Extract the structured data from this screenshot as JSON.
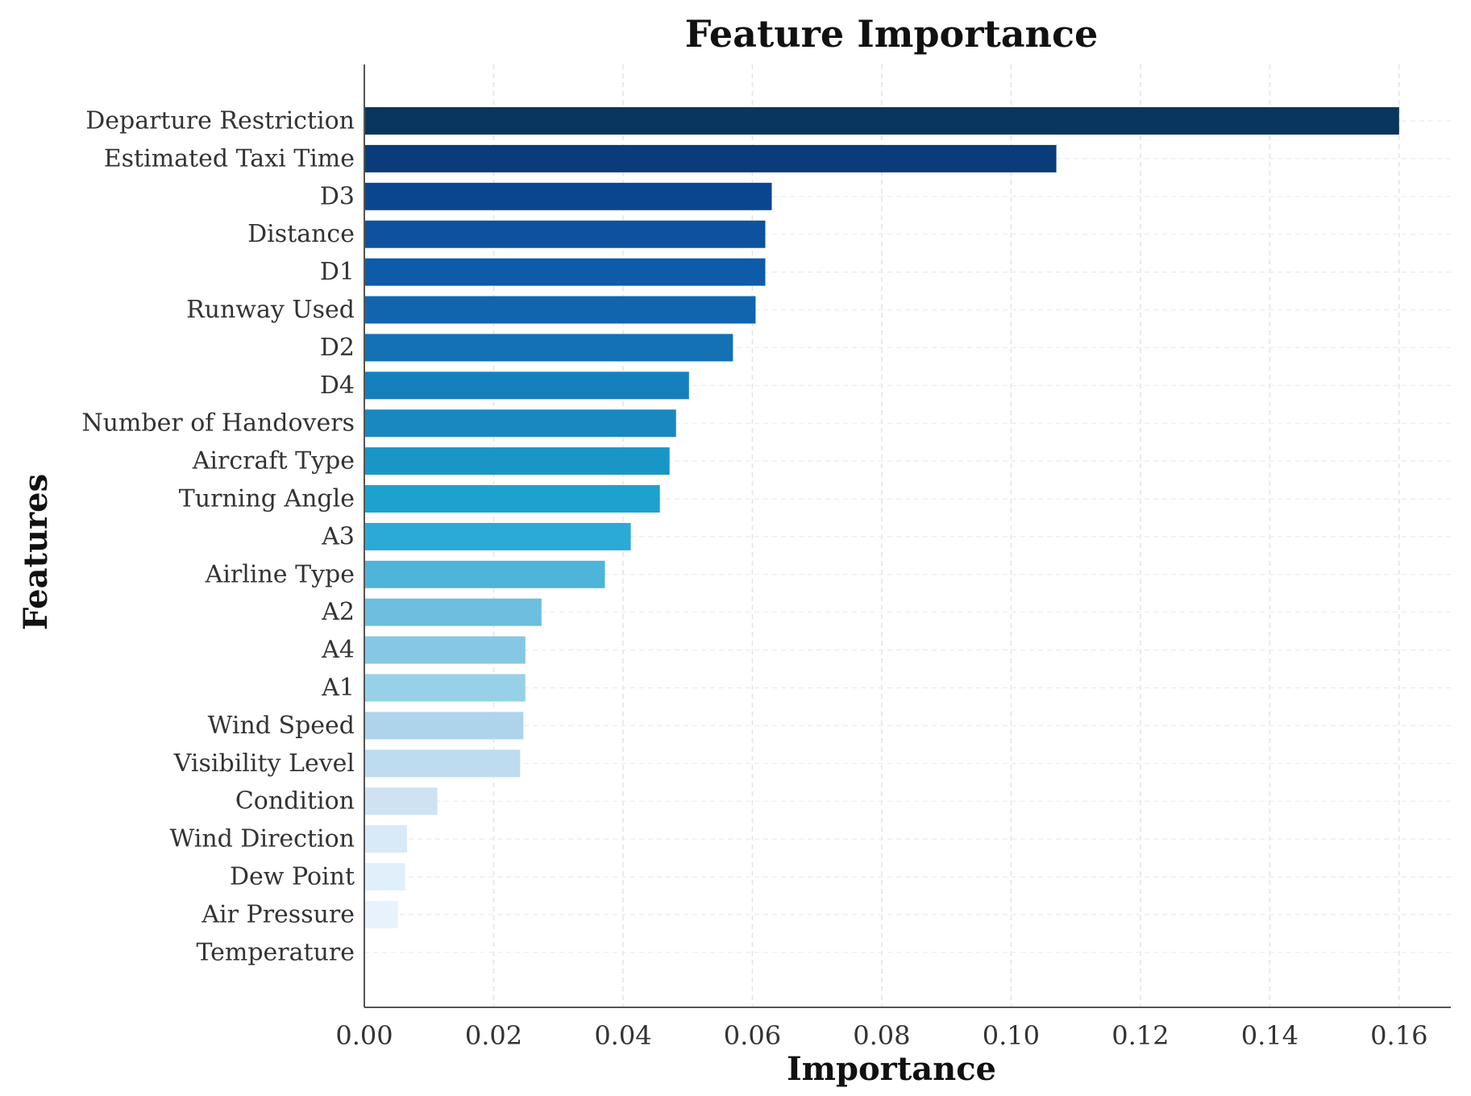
{
  "chart_data": {
    "type": "bar",
    "orientation": "horizontal",
    "title": "Feature Importance",
    "xlabel": "Importance",
    "ylabel": "Features",
    "xlim": [
      0,
      0.168
    ],
    "xticks": [
      0.0,
      0.02,
      0.04,
      0.06,
      0.08,
      0.1,
      0.12,
      0.14,
      0.16
    ],
    "xtick_labels": [
      "0.00",
      "0.02",
      "0.04",
      "0.06",
      "0.08",
      "0.10",
      "0.12",
      "0.14",
      "0.16"
    ],
    "grid": true,
    "categories": [
      "Departure Restriction",
      "Estimated Taxi Time",
      "D3",
      "Distance",
      "D1",
      "Runway Used",
      "D2",
      "D4",
      "Number of Handovers",
      "Aircraft Type",
      "Turning Angle",
      "A3",
      "Airline Type",
      "A2",
      "A4",
      "A1",
      "Wind Speed",
      "Visibility Level",
      "Condition",
      "Wind Direction",
      "Dew Point",
      "Air Pressure",
      "Temperature"
    ],
    "values": [
      0.16,
      0.107,
      0.063,
      0.062,
      0.062,
      0.0605,
      0.057,
      0.0502,
      0.0482,
      0.0472,
      0.0457,
      0.0412,
      0.0372,
      0.0274,
      0.0249,
      0.0249,
      0.0246,
      0.0241,
      0.0113,
      0.0066,
      0.0063,
      0.0052,
      0.0
    ],
    "colors": [
      "#08365f",
      "#0a3b7a",
      "#0a4590",
      "#0c529e",
      "#0d5ba9",
      "#1165ae",
      "#1471b4",
      "#1580bd",
      "#1988c0",
      "#1a96c6",
      "#1ea1ce",
      "#2aaad7",
      "#4fb4da",
      "#6ebedf",
      "#86c8e4",
      "#97d1e8",
      "#aed4ec",
      "#bddcf0",
      "#cfe2f3",
      "#d8e9f8",
      "#e1effb",
      "#e7f2fc",
      "#f0f7fd"
    ]
  }
}
